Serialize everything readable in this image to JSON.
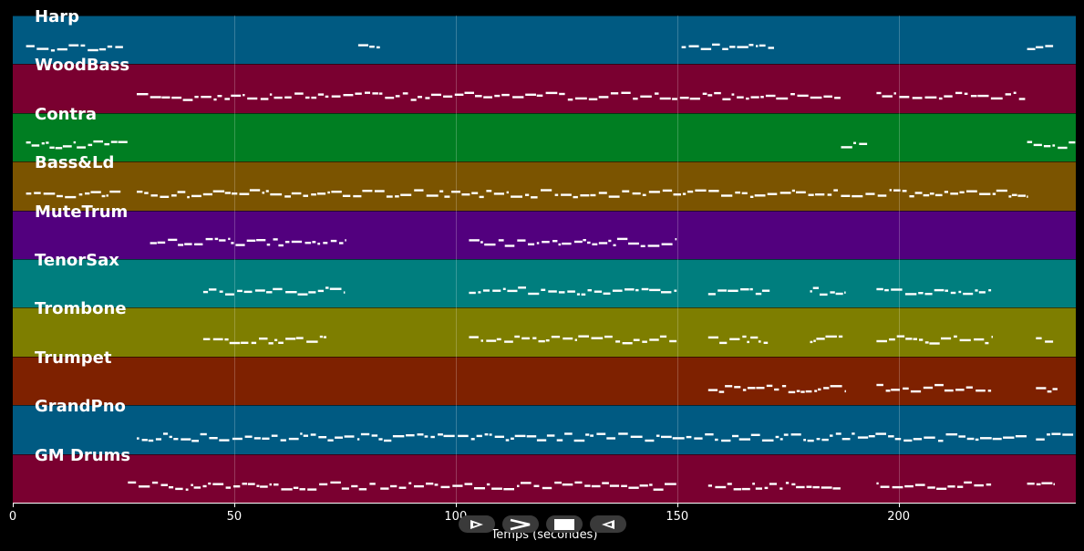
{
  "tracks": [
    {
      "name": "Harp",
      "color": "#005a82"
    },
    {
      "name": "WoodBass",
      "color": "#7a0030"
    },
    {
      "name": "Contra",
      "color": "#007e22"
    },
    {
      "name": "Bass&Ld",
      "color": "#7b5400"
    },
    {
      "name": "MuteTrum",
      "color": "#52007e"
    },
    {
      "name": "TenorSax",
      "color": "#007e7e"
    },
    {
      "name": "Trombone",
      "color": "#7e7e00"
    },
    {
      "name": "Trumpet",
      "color": "#7e2100"
    },
    {
      "name": "GrandPno",
      "color": "#005a82"
    },
    {
      "name": "GM Drums",
      "color": "#7a0030"
    }
  ],
  "note_segments": [
    [
      [
        3,
        25
      ],
      [
        78,
        83
      ],
      [
        151,
        172
      ],
      [
        229,
        235
      ]
    ],
    [
      [
        28,
        187
      ],
      [
        195,
        229
      ]
    ],
    [
      [
        3,
        26
      ],
      [
        187,
        193
      ],
      [
        229,
        240
      ]
    ],
    [
      [
        3,
        25
      ],
      [
        28,
        229
      ]
    ],
    [
      [
        31,
        75
      ],
      [
        103,
        150
      ]
    ],
    [
      [
        43,
        75
      ],
      [
        103,
        150
      ],
      [
        157,
        171
      ],
      [
        180,
        188
      ],
      [
        195,
        221
      ]
    ],
    [
      [
        43,
        71
      ],
      [
        103,
        150
      ],
      [
        157,
        171
      ],
      [
        180,
        188
      ],
      [
        195,
        221
      ],
      [
        231,
        235
      ]
    ],
    [
      [
        157,
        188
      ],
      [
        195,
        221
      ],
      [
        231,
        236
      ]
    ],
    [
      [
        28,
        229
      ],
      [
        231,
        240
      ]
    ],
    [
      [
        26,
        82
      ],
      [
        83,
        150
      ],
      [
        157,
        187
      ],
      [
        195,
        221
      ],
      [
        229,
        235
      ]
    ]
  ],
  "axis": {
    "xlabel": "Temps (secondes)",
    "xlim": [
      0,
      240
    ],
    "ticks": [
      0,
      50,
      100,
      150,
      200
    ]
  },
  "controls": [
    {
      "name": "play-button",
      "icon": "play-icon"
    },
    {
      "name": "fast-forward-button",
      "icon": "fast-forward-icon"
    },
    {
      "name": "stop-button",
      "icon": "stop-icon"
    },
    {
      "name": "rewind-button",
      "icon": "rewind-icon"
    }
  ]
}
